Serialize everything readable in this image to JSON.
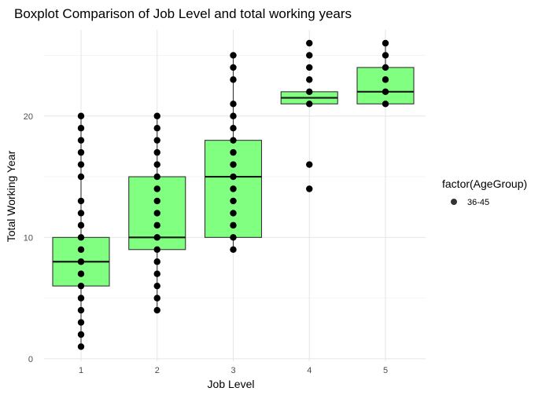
{
  "chart_data": {
    "type": "boxplot",
    "title": "Boxplot Comparison of Job Level and total working years",
    "xlabel": "Job Level",
    "ylabel": "Total Working Year",
    "categories": [
      "1",
      "2",
      "3",
      "4",
      "5"
    ],
    "ylim": [
      -0.2,
      27.1
    ],
    "y_ticks": [
      0,
      10,
      20
    ],
    "grid": true,
    "box_fill": "#80ff80",
    "point_color": "#000000",
    "legend": {
      "title": "factor(AgeGroup)",
      "entries": [
        "36-45"
      ],
      "position": "right"
    },
    "boxes": [
      {
        "category": "1",
        "q1": 6,
        "median": 8,
        "q3": 10,
        "whisker_low": 1,
        "whisker_high": 20
      },
      {
        "category": "2",
        "q1": 9,
        "median": 10,
        "q3": 15,
        "whisker_low": 4,
        "whisker_high": 20
      },
      {
        "category": "3",
        "q1": 10,
        "median": 15,
        "q3": 18,
        "whisker_low": 9,
        "whisker_high": 25
      },
      {
        "category": "4",
        "q1": 21,
        "median": 21.5,
        "q3": 22,
        "whisker_low": 21,
        "whisker_high": 22
      },
      {
        "category": "5",
        "q1": 21,
        "median": 22,
        "q3": 24,
        "whisker_low": 21,
        "whisker_high": 26
      }
    ],
    "points": [
      {
        "category": "1",
        "values": [
          1,
          2,
          3,
          4,
          5,
          6,
          7,
          8,
          9,
          10,
          11,
          12,
          13,
          15,
          16,
          17,
          18,
          19,
          20
        ]
      },
      {
        "category": "2",
        "values": [
          4,
          5,
          6,
          7,
          8,
          9,
          10,
          11,
          12,
          13,
          14,
          15,
          16,
          17,
          18,
          19,
          20
        ]
      },
      {
        "category": "3",
        "values": [
          9,
          10,
          11,
          12,
          13,
          14,
          15,
          16,
          17,
          18,
          19,
          20,
          21,
          23,
          24,
          25
        ]
      },
      {
        "category": "4",
        "values": [
          14,
          16,
          21,
          22,
          23,
          24,
          25,
          26
        ]
      },
      {
        "category": "5",
        "values": [
          21,
          22,
          23,
          24,
          25,
          26
        ]
      }
    ]
  }
}
